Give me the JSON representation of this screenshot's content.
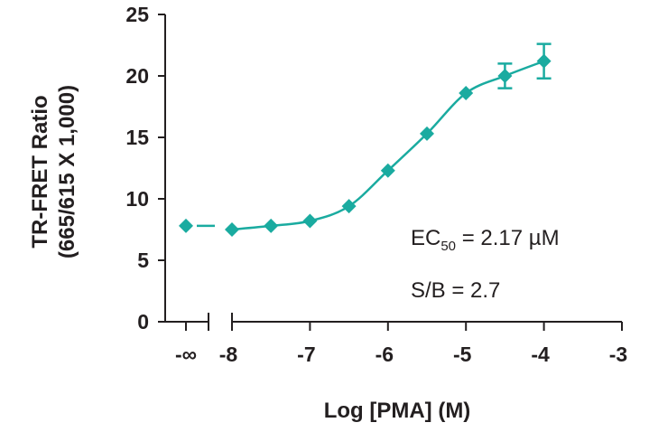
{
  "chart_data": {
    "type": "line",
    "x_label": "Log [PMA] (M)",
    "y_label": [
      "TR-FRET Ratio",
      "(665/615 X 1,000)"
    ],
    "baseline": {
      "label": "-∞",
      "value": 7.8
    },
    "series": [
      {
        "name": "PMA",
        "color": "#1aaba0",
        "x": [
          -8,
          -7.5,
          -7,
          -6.5,
          -6,
          -5.5,
          -5,
          -4.5,
          -4
        ],
        "values": [
          7.5,
          7.8,
          8.2,
          9.4,
          12.3,
          15.3,
          18.6,
          20.0,
          21.2
        ],
        "errors": [
          null,
          null,
          null,
          null,
          null,
          null,
          null,
          1.0,
          1.4
        ]
      }
    ],
    "xlim": [
      -8,
      -3
    ],
    "xticks": [
      -8,
      -7,
      -6,
      -5,
      -4,
      -3
    ],
    "ylim": [
      0,
      25
    ],
    "yticks": [
      0,
      5,
      10,
      15,
      20,
      25
    ],
    "annotations": {
      "ec50": {
        "prefix": "EC",
        "subscript": "50",
        "text": " = 2.17 µM"
      },
      "sb": "S/B = 2.7"
    }
  }
}
